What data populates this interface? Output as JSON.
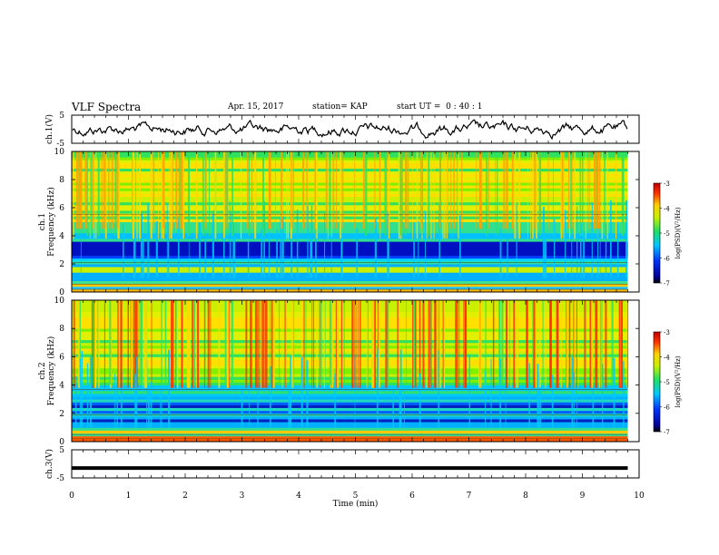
{
  "header": {
    "title": "VLF Spectra",
    "date": "Apr. 15, 2017",
    "station": "station= KAP",
    "start": "start UT =  0 : 40 : 1"
  },
  "chart_data": [
    {
      "type": "line",
      "panel": "ch1-waveform",
      "ylabel": "ch.1(V)",
      "ylim": [
        -5,
        5
      ],
      "yticks": [
        "5",
        "-5"
      ],
      "xlim": [
        0,
        10
      ],
      "color": "#000000"
    },
    {
      "type": "heatmap",
      "panel": "ch1-spectrogram",
      "ylabel": "ch.1\nFrequency (kHz)",
      "ylim": [
        0,
        10
      ],
      "yticks": [
        "0",
        "2",
        "4",
        "6",
        "8",
        "10"
      ],
      "xlim": [
        0,
        9.8
      ],
      "colorbar": {
        "label": "log(PSD)(V²/Hz)",
        "range": [
          -7,
          -3
        ],
        "ticks": [
          "-3",
          "-4",
          "-5",
          "-6",
          "-7"
        ]
      }
    },
    {
      "type": "heatmap",
      "panel": "ch2-spectrogram",
      "ylabel": "ch.2\nFrequency (kHz)",
      "ylim": [
        0,
        10
      ],
      "yticks": [
        "0",
        "2",
        "4",
        "6",
        "8",
        "10"
      ],
      "xlim": [
        0,
        9.8
      ],
      "colorbar": {
        "label": "log(PSD)(V²/Hz)",
        "range": [
          -7,
          -3
        ],
        "ticks": [
          "-3",
          "-4",
          "-5",
          "-6",
          "-7"
        ]
      }
    },
    {
      "type": "line",
      "panel": "ch3-waveform",
      "ylabel": "ch.3(V)",
      "ylim": [
        -5,
        5
      ],
      "yticks": [
        "5",
        "-5"
      ],
      "series": [
        {
          "values": [
            -1.5,
            -1.5
          ]
        }
      ],
      "x": [
        0,
        9.8
      ],
      "color": "#000000"
    }
  ],
  "xaxis": {
    "label": "Time (min)",
    "range": [
      0,
      10
    ],
    "ticks": [
      "0",
      "1",
      "2",
      "3",
      "4",
      "5",
      "6",
      "7",
      "8",
      "9",
      "10"
    ]
  }
}
